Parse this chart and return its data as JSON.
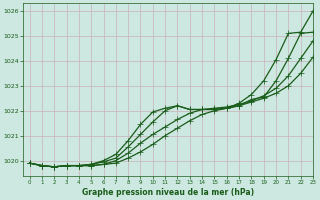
{
  "background_color": "#cce8e0",
  "grid_color": "#b8d4cc",
  "line_color": "#1a5c1a",
  "title": "Graphe pression niveau de la mer (hPa)",
  "ylim": [
    1019.4,
    1026.3
  ],
  "xlim": [
    -0.5,
    23
  ],
  "xticks": [
    0,
    1,
    2,
    3,
    4,
    5,
    6,
    7,
    8,
    9,
    10,
    11,
    12,
    13,
    14,
    15,
    16,
    17,
    18,
    19,
    20,
    21,
    22,
    23
  ],
  "yticks": [
    1020,
    1021,
    1022,
    1023,
    1024,
    1025,
    1026
  ],
  "hours": [
    0,
    1,
    2,
    3,
    4,
    5,
    6,
    7,
    8,
    9,
    10,
    11,
    12,
    13,
    14,
    15,
    16,
    17,
    18,
    19,
    20,
    21,
    22,
    23
  ],
  "series1": [
    1019.9,
    1019.8,
    1019.75,
    1019.8,
    1019.8,
    1019.8,
    1019.85,
    1019.9,
    1020.1,
    1020.35,
    1020.65,
    1021.0,
    1021.3,
    1021.6,
    1021.85,
    1022.0,
    1022.1,
    1022.2,
    1022.35,
    1022.5,
    1022.7,
    1023.0,
    1023.5,
    1024.15
  ],
  "series2": [
    1019.9,
    1019.8,
    1019.75,
    1019.8,
    1019.8,
    1019.8,
    1019.85,
    1020.0,
    1020.3,
    1020.7,
    1021.05,
    1021.35,
    1021.65,
    1021.9,
    1022.05,
    1022.1,
    1022.15,
    1022.25,
    1022.4,
    1022.6,
    1022.9,
    1023.4,
    1024.1,
    1024.8
  ],
  "series3": [
    1019.9,
    1019.8,
    1019.75,
    1019.8,
    1019.8,
    1019.85,
    1019.95,
    1020.1,
    1020.55,
    1021.05,
    1021.55,
    1022.0,
    1022.2,
    1022.05,
    1022.05,
    1022.05,
    1022.1,
    1022.2,
    1022.45,
    1022.55,
    1023.2,
    1024.1,
    1025.1,
    1025.15
  ],
  "series4": [
    1019.9,
    1019.8,
    1019.75,
    1019.8,
    1019.8,
    1019.85,
    1020.0,
    1020.25,
    1020.8,
    1021.45,
    1021.95,
    1022.1,
    1022.2,
    1022.05,
    1022.05,
    1022.05,
    1022.1,
    1022.3,
    1022.65,
    1023.2,
    1024.05,
    1025.1,
    1025.15,
    1026.0
  ]
}
